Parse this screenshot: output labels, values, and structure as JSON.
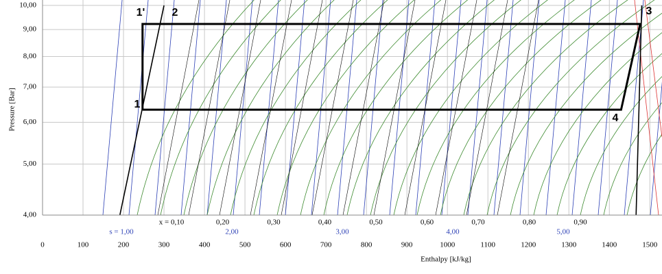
{
  "chart_data": {
    "type": "line",
    "x_label": "Enthalpy [kJ/kg]",
    "y_label": "Pressure [Bar]",
    "xlim": [
      0,
      1530
    ],
    "ylim": [
      4,
      10.24
    ],
    "log_y": true,
    "grid": true,
    "xticks": [
      0,
      100,
      200,
      300,
      400,
      500,
      600,
      700,
      800,
      900,
      1000,
      1100,
      1200,
      1300,
      1400,
      1500
    ],
    "yticks": [
      {
        "value": 4,
        "label": "4,00"
      },
      {
        "value": 5,
        "label": "5,00"
      },
      {
        "value": 6,
        "label": "6,00"
      },
      {
        "value": 7,
        "label": "7,00"
      },
      {
        "value": 8,
        "label": "8,00"
      },
      {
        "value": 9,
        "label": "9,00"
      },
      {
        "value": 10,
        "label": "10,00"
      }
    ],
    "series": [
      {
        "color": "#000000",
        "x": [
          247,
          247,
          1476,
          1429,
          247
        ],
        "values": [
          6.34,
          9.22,
          9.22,
          6.34,
          6.34
        ]
      },
      {
        "color": "#000000",
        "x": [
          191,
          300
        ],
        "values": [
          4,
          10
        ]
      },
      {
        "color": "#000000",
        "x": [
          1466,
          1480
        ],
        "values": [
          4,
          10
        ]
      }
    ],
    "point_labels": [
      "1",
      "1'",
      "2",
      "3",
      "4"
    ],
    "quality_labels": [
      "x = 0,10",
      "0,20",
      "0,30",
      "0,40",
      "0,50",
      "0,60",
      "0,70",
      "0,80",
      "0,90"
    ],
    "entropy_labels": [
      "s = 1,00",
      "2,00",
      "3,00",
      "4,00",
      "5,00"
    ]
  }
}
